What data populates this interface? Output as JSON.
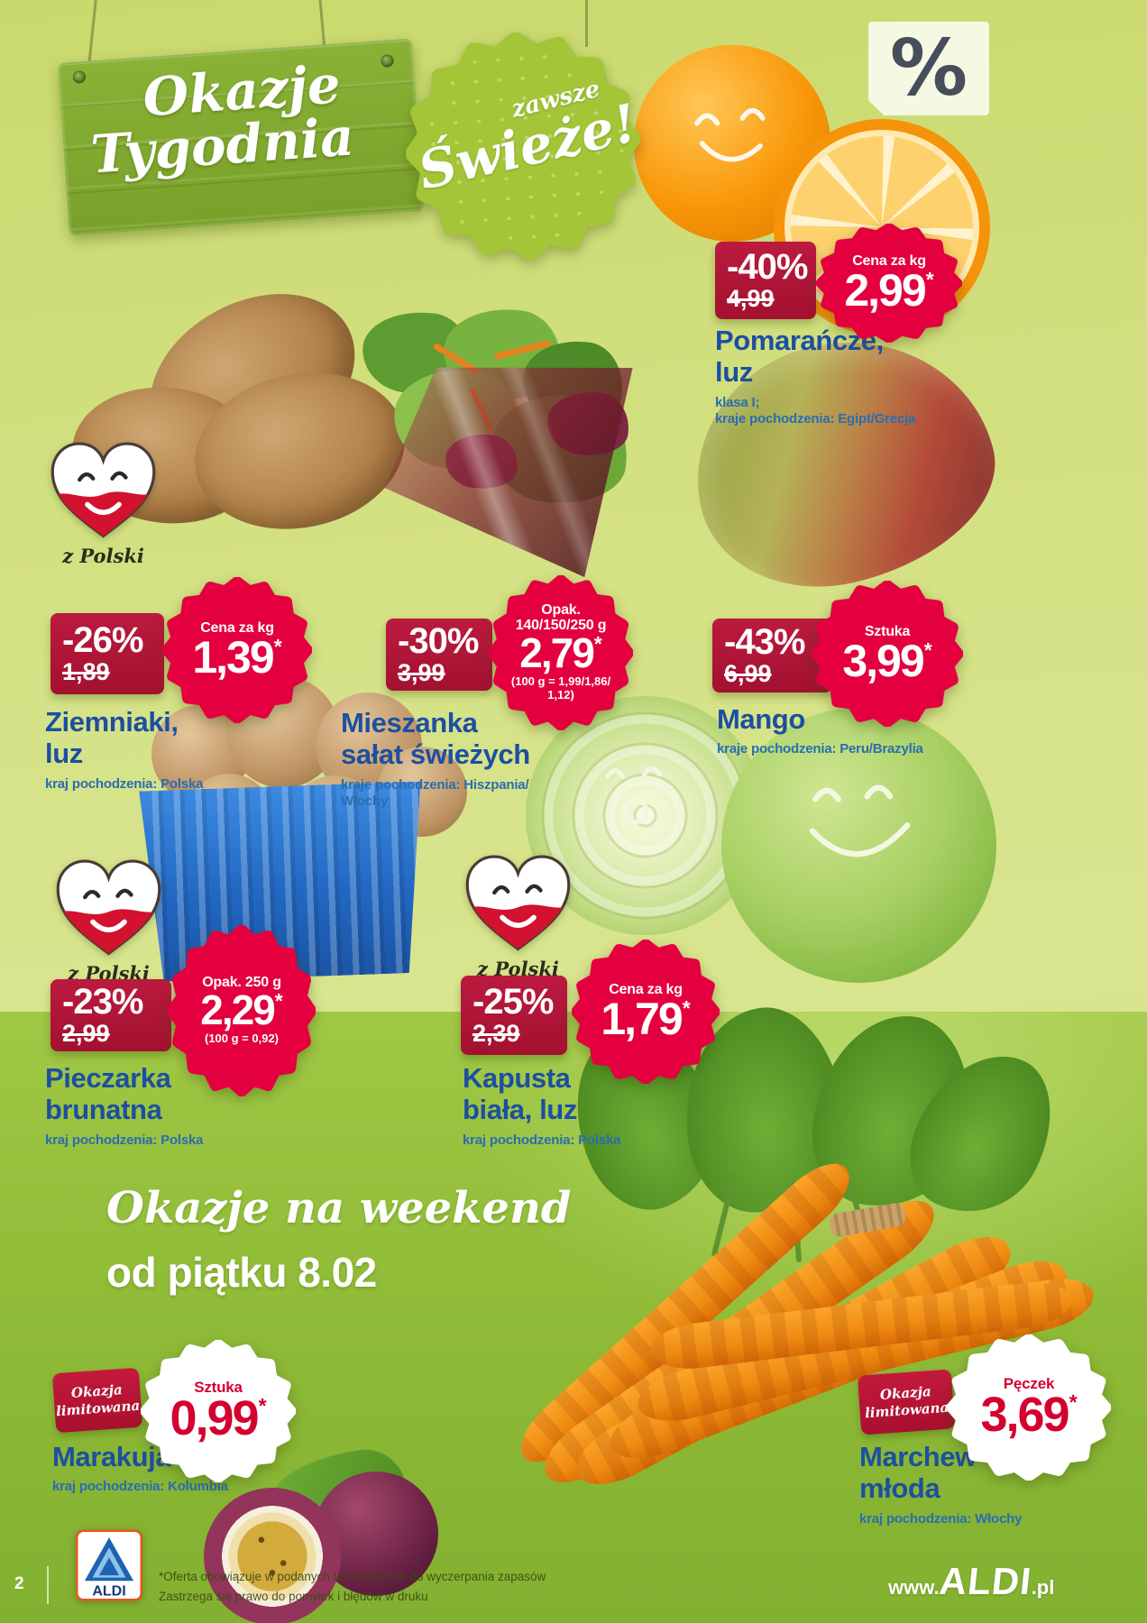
{
  "colors": {
    "accent_red": "#e4003f",
    "badge_dark_red": "#b31639",
    "brand_blue": "#1d4fa1",
    "leaf_green": "#a3c537",
    "bg_light": "#d4e184",
    "bg_weekend": "#90bc38"
  },
  "header": {
    "sign_line1": "Okazje",
    "sign_line2": "Tygodnia",
    "fresh_top": "zawsze",
    "fresh_main": "Świeże!",
    "percent_symbol": "%"
  },
  "common": {
    "origin_heart": "z Polski",
    "limited_line1": "Okazja",
    "limited_line2": "limitowana"
  },
  "products": {
    "oranges": {
      "discount": "-40%",
      "old_price": "4,99",
      "unit": "Cena za kg",
      "price": "2,99",
      "star": "*",
      "name_line1": "Pomarańcze,",
      "name_line2": "luz",
      "detail1": "klasa I;",
      "detail2": "kraje pochodzenia: Egipt/Grecja"
    },
    "potatoes": {
      "discount": "-26%",
      "old_price": "1,89",
      "unit": "Cena za kg",
      "price": "1,39",
      "star": "*",
      "name_line1": "Ziemniaki,",
      "name_line2": "luz",
      "origin": "kraj pochodzenia: Polska"
    },
    "salad": {
      "discount": "-30%",
      "old_price": "3,99",
      "unit_line1": "Opak.",
      "unit_line2": "140/150/250 g",
      "price": "2,79",
      "star": "*",
      "note": "(100 g = 1,99/1,86/ 1,12)",
      "name_line1": "Mieszanka",
      "name_line2": "sałat świeżych",
      "origin": "kraje pochodzenia: Hiszpania/ Włochy"
    },
    "mango": {
      "discount": "-43%",
      "old_price": "6,99",
      "unit": "Sztuka",
      "price": "3,99",
      "star": "*",
      "name_line1": "Mango",
      "origin": "kraje pochodzenia: Peru/Brazylia"
    },
    "mushrooms": {
      "discount": "-23%",
      "old_price": "2,99",
      "unit": "Opak. 250 g",
      "price": "2,29",
      "star": "*",
      "note": "(100 g = 0,92)",
      "name_line1": "Pieczarka",
      "name_line2": "brunatna",
      "origin": "kraj pochodzenia: Polska"
    },
    "cabbage": {
      "discount": "-25%",
      "old_price": "2,39",
      "unit": "Cena za kg",
      "price": "1,79",
      "star": "*",
      "name_line1": "Kapusta",
      "name_line2": "biała, luz",
      "origin": "kraj pochodzenia: Polska"
    }
  },
  "weekend": {
    "title_script": "Okazje na weekend",
    "title_bold": "od piątku 8.02",
    "marakuja": {
      "unit": "Sztuka",
      "price": "0,99",
      "star": "*",
      "name_line1": "Marakuja",
      "origin": "kraj pochodzenia: Kolumbia"
    },
    "marchew": {
      "unit": "Pęczek",
      "price": "3,69",
      "star": "*",
      "name_line1": "Marchew",
      "name_line2": "młoda",
      "origin": "kraj pochodzenia: Włochy"
    }
  },
  "footer": {
    "page_number": "2",
    "logo_text": "ALDI",
    "disclaimer_line1": "*Oferta obowiązuje w podanych terminach lub do wyczerpania zapasów",
    "disclaimer_line2": "Zastrzega się prawo do pomyłek i błędów w druku",
    "url_www": "www.",
    "url_brand": "ALDI",
    "url_tld": ".pl"
  }
}
